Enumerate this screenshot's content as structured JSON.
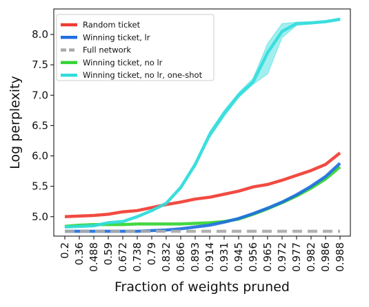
{
  "chart_data": {
    "type": "line",
    "title": "",
    "xlabel": "Fraction of weights pruned",
    "ylabel": "Log perplexity",
    "categories": [
      "0.2",
      "0.36",
      "0.488",
      "0.59",
      "0.672",
      "0.738",
      "0.79",
      "0.832",
      "0.866",
      "0.893",
      "0.914",
      "0.931",
      "0.945",
      "0.956",
      "0.965",
      "0.972",
      "0.977",
      "0.982",
      "0.986",
      "0.988"
    ],
    "yticks": [
      "5.0",
      "5.5",
      "6.0",
      "6.5",
      "7.0",
      "7.5",
      "8.0"
    ],
    "ylim": [
      4.68,
      8.42
    ],
    "grid": false,
    "legend_position": "top-left",
    "series": [
      {
        "name": "Random ticket",
        "color": "#f03c32",
        "style": "solid",
        "values": [
          5.0,
          5.01,
          5.02,
          5.04,
          5.08,
          5.1,
          5.15,
          5.2,
          5.24,
          5.29,
          5.32,
          5.37,
          5.42,
          5.49,
          5.53,
          5.6,
          5.68,
          5.76,
          5.86,
          6.05
        ]
      },
      {
        "name": "Winning ticket, lr",
        "color": "#1f6fe0",
        "style": "solid",
        "values": [
          4.76,
          4.76,
          4.76,
          4.76,
          4.76,
          4.76,
          4.77,
          4.78,
          4.8,
          4.83,
          4.86,
          4.91,
          4.97,
          5.05,
          5.14,
          5.24,
          5.36,
          5.5,
          5.66,
          5.88
        ]
      },
      {
        "name": "Full network",
        "color": "#aaaaaa",
        "style": "dashed",
        "values": [
          4.76,
          4.76,
          4.76,
          4.76,
          4.76,
          4.76,
          4.76,
          4.76,
          4.76,
          4.76,
          4.76,
          4.76,
          4.76,
          4.76,
          4.76,
          4.76,
          4.76,
          4.76,
          4.76,
          4.76
        ]
      },
      {
        "name": "Winning ticket, no lr",
        "color": "#33d533",
        "style": "solid",
        "values": [
          4.84,
          4.86,
          4.87,
          4.87,
          4.87,
          4.88,
          4.88,
          4.88,
          4.88,
          4.89,
          4.9,
          4.92,
          4.96,
          5.04,
          5.13,
          5.23,
          5.34,
          5.47,
          5.62,
          5.82
        ]
      },
      {
        "name": "Winning ticket, no lr, one-shot",
        "color": "#33dcdc",
        "style": "solid",
        "values": [
          4.83,
          4.84,
          4.85,
          4.9,
          4.92,
          5.0,
          5.1,
          5.22,
          5.48,
          5.86,
          6.35,
          6.7,
          7.0,
          7.22,
          7.7,
          8.05,
          8.18,
          8.19,
          8.21,
          8.25
        ],
        "band_low": [
          4.82,
          4.83,
          4.84,
          4.88,
          4.9,
          4.98,
          5.08,
          5.2,
          5.45,
          5.82,
          6.3,
          6.65,
          6.96,
          7.18,
          7.35,
          7.95,
          8.15,
          8.17,
          8.2,
          8.23
        ],
        "band_high": [
          4.84,
          4.85,
          4.86,
          4.92,
          4.94,
          5.02,
          5.12,
          5.24,
          5.51,
          5.9,
          6.4,
          6.75,
          7.04,
          7.28,
          7.85,
          8.18,
          8.2,
          8.21,
          8.23,
          8.27
        ]
      }
    ]
  }
}
